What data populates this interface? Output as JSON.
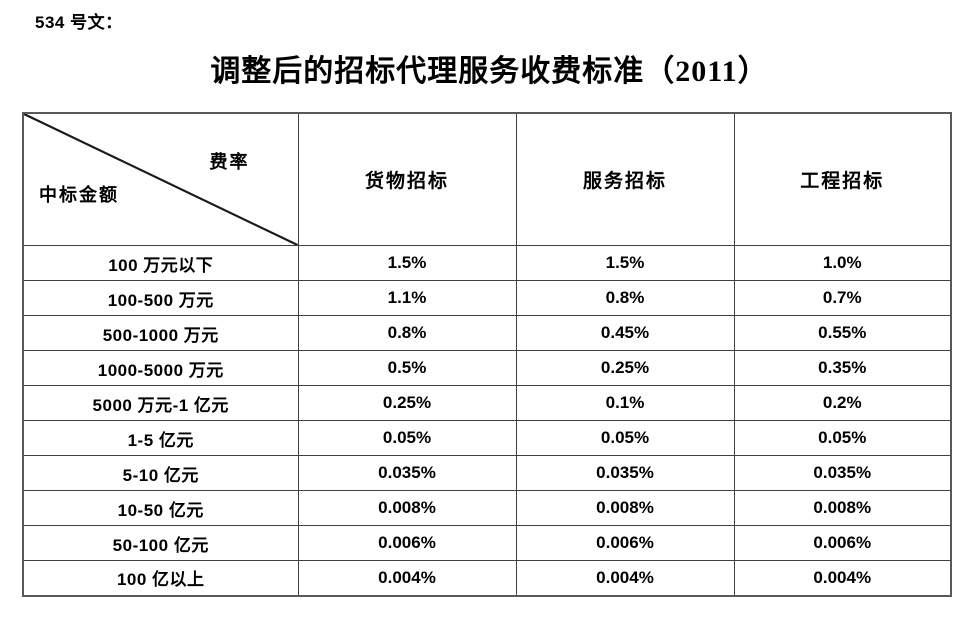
{
  "doc_label": "534 号文：",
  "title": "调整后的招标代理服务收费标准（2011）",
  "table": {
    "corner": {
      "top_right": "费率",
      "bottom_left": "中标金额"
    },
    "columns": [
      "货物招标",
      "服务招标",
      "工程招标"
    ],
    "rows": [
      {
        "label": "100 万元以下",
        "values": [
          "1.5%",
          "1.5%",
          "1.0%"
        ]
      },
      {
        "label": "100-500 万元",
        "values": [
          "1.1%",
          "0.8%",
          "0.7%"
        ]
      },
      {
        "label": "500-1000 万元",
        "values": [
          "0.8%",
          "0.45%",
          "0.55%"
        ]
      },
      {
        "label": "1000-5000 万元",
        "values": [
          "0.5%",
          "0.25%",
          "0.35%"
        ]
      },
      {
        "label": "5000 万元-1 亿元",
        "values": [
          "0.25%",
          "0.1%",
          "0.2%"
        ]
      },
      {
        "label": "1-5 亿元",
        "values": [
          "0.05%",
          "0.05%",
          "0.05%"
        ]
      },
      {
        "label": "5-10 亿元",
        "values": [
          "0.035%",
          "0.035%",
          "0.035%"
        ]
      },
      {
        "label": "10-50 亿元",
        "values": [
          "0.008%",
          "0.008%",
          "0.008%"
        ]
      },
      {
        "label": "50-100 亿元",
        "values": [
          "0.006%",
          "0.006%",
          "0.006%"
        ]
      },
      {
        "label": "100 亿以上",
        "values": [
          "0.004%",
          "0.004%",
          "0.004%"
        ]
      }
    ]
  },
  "colors": {
    "border_inner": "#404040",
    "border_outer": "#595959",
    "text": "#000000",
    "background": "#ffffff"
  }
}
